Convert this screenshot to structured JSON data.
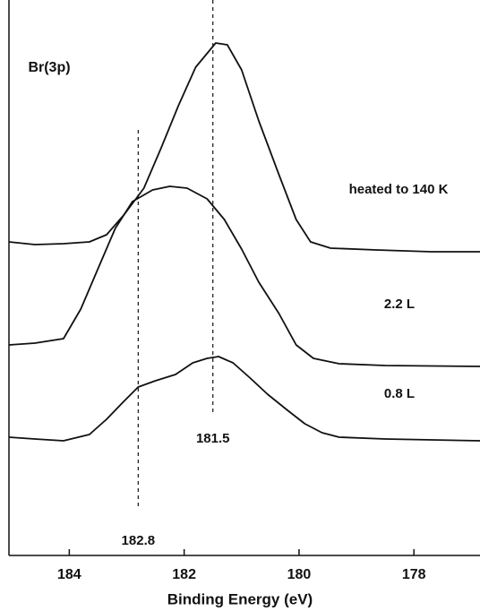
{
  "chart_data": {
    "type": "line",
    "x_label": "Binding Energy (eV)",
    "annotation": "Br(3p)",
    "xlim": [
      185.05,
      176.85
    ],
    "xticks": [
      184,
      182,
      180,
      178
    ],
    "ylim": [
      0,
      620
    ],
    "reference_lines": [
      182.8,
      181.5
    ],
    "color": "#111111",
    "series": [
      {
        "name": "heated to 140 K",
        "x": [
          185.05,
          184.6,
          184.1,
          183.65,
          183.35,
          183.05,
          182.7,
          182.4,
          182.1,
          181.8,
          181.45,
          181.25,
          181.0,
          180.7,
          180.35,
          180.05,
          179.8,
          179.45,
          178.65,
          177.7,
          176.85
        ],
        "values": [
          350,
          347,
          348,
          350,
          358,
          380,
          410,
          455,
          502,
          545,
          572,
          570,
          542,
          485,
          425,
          375,
          350,
          343,
          341,
          339,
          339
        ]
      },
      {
        "name": "2.2 L",
        "x": [
          185.05,
          184.6,
          184.1,
          183.8,
          183.5,
          183.2,
          182.9,
          182.55,
          182.25,
          181.95,
          181.6,
          181.3,
          181.0,
          180.7,
          180.35,
          180.05,
          179.75,
          179.3,
          178.5,
          176.85
        ],
        "values": [
          235,
          237,
          242,
          275,
          320,
          365,
          395,
          408,
          412,
          410,
          398,
          375,
          342,
          305,
          270,
          235,
          220,
          214,
          212,
          211
        ]
      },
      {
        "name": "0.8 L",
        "x": [
          185.05,
          184.6,
          184.1,
          183.65,
          183.35,
          183.05,
          182.8,
          182.5,
          182.15,
          181.85,
          181.6,
          181.4,
          181.15,
          180.85,
          180.55,
          180.2,
          179.9,
          179.6,
          179.3,
          178.5,
          176.85
        ],
        "values": [
          132,
          130,
          128,
          135,
          152,
          172,
          188,
          195,
          202,
          215,
          220,
          222,
          215,
          198,
          180,
          162,
          147,
          137,
          132,
          130,
          128
        ]
      }
    ]
  }
}
